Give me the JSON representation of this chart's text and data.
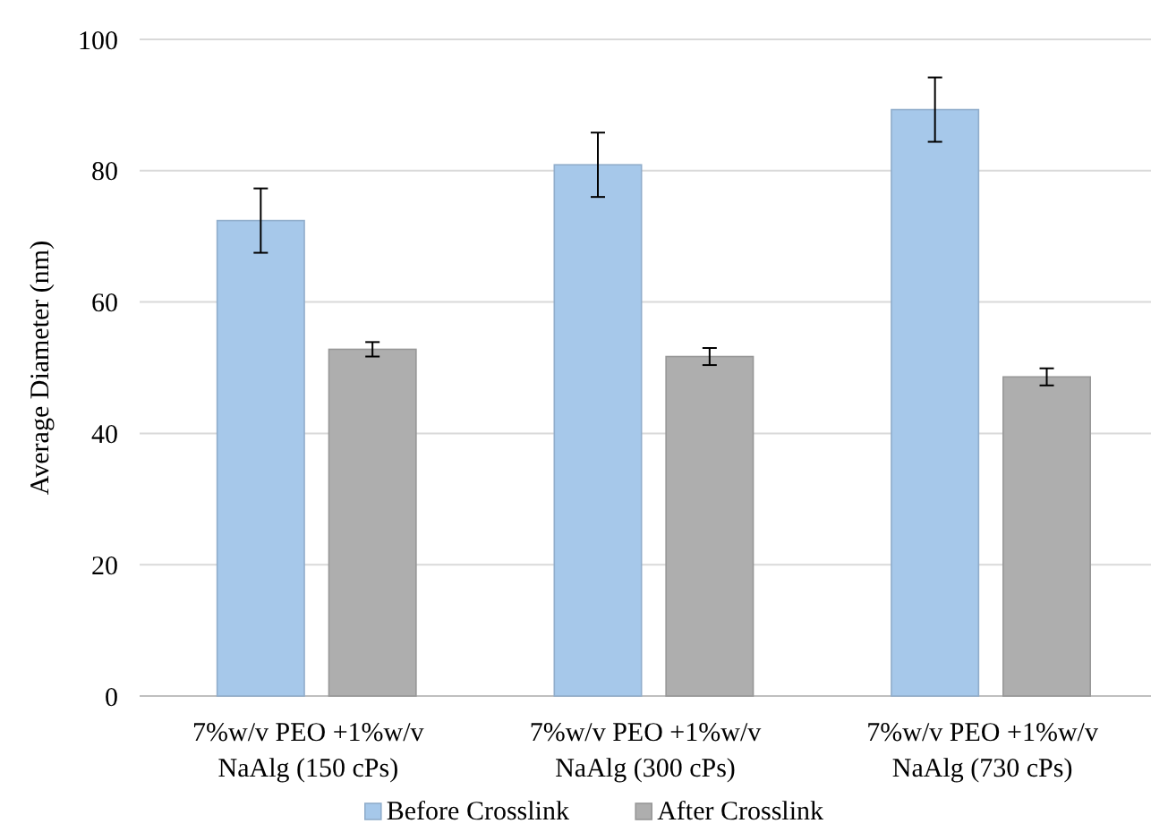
{
  "chart_data": {
    "type": "bar",
    "ylabel": "Average Diameter (nm)",
    "categories": [
      "7%w/v PEO +1%w/v NaAlg (150 cPs)",
      "7%w/v PEO +1%w/v NaAlg (300 cPs)",
      "7%w/v PEO +1%w/v NaAlg (730 cPs)"
    ],
    "series": [
      {
        "name": "Before Crosslink",
        "color": "#a6c8ea",
        "values": [
          72.4,
          80.9,
          89.3
        ],
        "errors": [
          4.9,
          4.9,
          4.9
        ]
      },
      {
        "name": "After Crosslink",
        "color": "#aeaeae",
        "values": [
          52.8,
          51.7,
          48.6
        ],
        "errors": [
          1.1,
          1.3,
          1.3
        ]
      }
    ],
    "ylim": [
      0,
      100
    ],
    "yticks": [
      0,
      20,
      40,
      60,
      80,
      100
    ],
    "grid": "y",
    "legend": "bottom"
  }
}
